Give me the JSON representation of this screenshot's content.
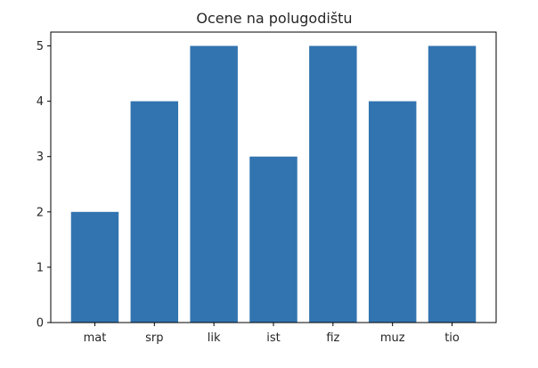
{
  "chart_data": {
    "type": "bar",
    "title": "Ocene na polugodištu",
    "xlabel": "",
    "ylabel": "",
    "categories": [
      "mat",
      "srp",
      "lik",
      "ist",
      "fiz",
      "muz",
      "tio"
    ],
    "values": [
      2,
      4,
      5,
      3,
      5,
      4,
      5
    ],
    "ylim": [
      0,
      5.25
    ],
    "yticks": [
      0,
      1,
      2,
      3,
      4,
      5
    ],
    "grid": false,
    "bar_color": "#3274b0"
  }
}
